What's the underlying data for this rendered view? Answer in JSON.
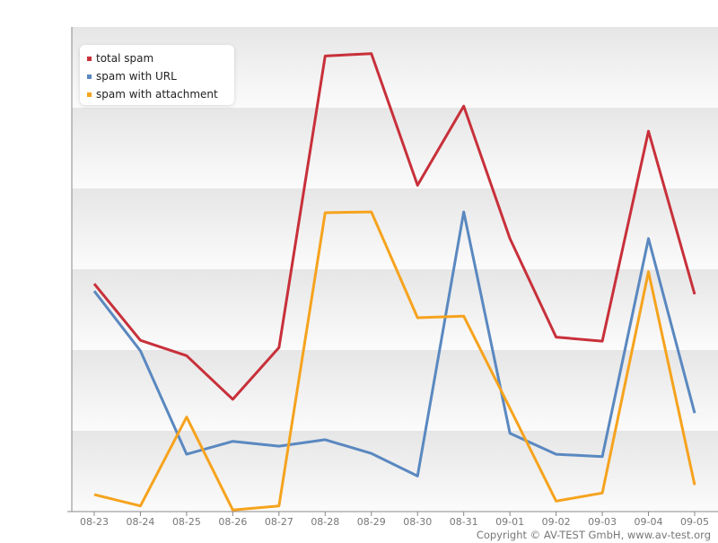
{
  "chart_data": {
    "type": "line",
    "title": "",
    "xlabel": "",
    "ylabel": "",
    "categories": [
      "08-23",
      "08-24",
      "08-25",
      "08-26",
      "08-27",
      "08-28",
      "08-29",
      "08-30",
      "08-31",
      "09-01",
      "09-02",
      "09-03",
      "09-04",
      "09-05"
    ],
    "ylim": [
      0,
      6
    ],
    "grid": true,
    "legend_position": "top-left",
    "series": [
      {
        "name": "total spam",
        "color": "#c8303a",
        "values": [
          2.82,
          2.12,
          1.93,
          1.39,
          2.03,
          5.64,
          5.67,
          4.04,
          5.02,
          3.38,
          2.16,
          2.11,
          4.71,
          2.69
        ]
      },
      {
        "name": "spam with URL",
        "color": "#5a88c0",
        "values": [
          2.73,
          1.99,
          0.71,
          0.87,
          0.81,
          0.89,
          0.72,
          0.44,
          3.71,
          0.97,
          0.71,
          0.68,
          3.38,
          1.22
        ]
      },
      {
        "name": "spam with attachment",
        "color": "#f6a31e",
        "values": [
          0.21,
          0.07,
          1.17,
          0.02,
          0.07,
          3.7,
          3.71,
          2.4,
          2.42,
          1.28,
          0.13,
          0.23,
          2.97,
          0.33
        ]
      }
    ]
  },
  "copyright": "Copyright © AV-TEST GmbH, www.av-test.org"
}
